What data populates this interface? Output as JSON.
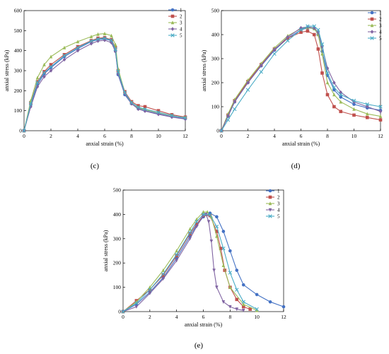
{
  "figure": {
    "panels": [
      "c",
      "d",
      "e"
    ]
  },
  "colors": {
    "s1": "#4472C4",
    "s2": "#C0504D",
    "s3": "#9BBB59",
    "s4": "#8064A2",
    "s5": "#4BACC6",
    "axis": "#000000"
  },
  "chart_data": [
    {
      "id": "c",
      "label": "(c)",
      "type": "line",
      "xlabel": "anxial strain (%)",
      "ylabel": "anxial stress (kPa)",
      "xlim": [
        0,
        12
      ],
      "ylim": [
        0,
        600
      ],
      "xticks": [
        0,
        2,
        4,
        6,
        8,
        10,
        12
      ],
      "yticks": [
        0,
        100,
        200,
        300,
        400,
        500,
        600
      ],
      "grid": false,
      "legend": "top-right",
      "series": [
        {
          "name": "1",
          "marker": "circle",
          "x": [
            0,
            0.5,
            1,
            1.5,
            2,
            3,
            4,
            5,
            5.5,
            6,
            6.5,
            6.8,
            7,
            7.5,
            8,
            8.5,
            9,
            10,
            11,
            12
          ],
          "y": [
            0,
            130,
            230,
            285,
            315,
            370,
            410,
            445,
            455,
            458,
            450,
            400,
            280,
            180,
            135,
            110,
            100,
            85,
            70,
            60
          ]
        },
        {
          "name": "2",
          "marker": "square",
          "x": [
            0,
            0.5,
            1,
            1.5,
            2,
            3,
            4,
            5,
            5.5,
            6,
            6.5,
            6.8,
            7,
            7.5,
            8,
            8.5,
            9,
            10,
            11,
            12
          ],
          "y": [
            0,
            140,
            245,
            295,
            330,
            380,
            420,
            450,
            462,
            465,
            455,
            415,
            300,
            195,
            145,
            125,
            120,
            100,
            80,
            68
          ]
        },
        {
          "name": "3",
          "marker": "triangle",
          "x": [
            0,
            0.5,
            1,
            1.5,
            2,
            3,
            4,
            5,
            5.5,
            6,
            6.5,
            6.8,
            7,
            7.5,
            8,
            8.5,
            9,
            10,
            11,
            12
          ],
          "y": [
            0,
            150,
            265,
            330,
            370,
            415,
            445,
            470,
            482,
            485,
            475,
            430,
            310,
            190,
            140,
            115,
            105,
            90,
            75,
            65
          ]
        },
        {
          "name": "4",
          "marker": "diamond",
          "x": [
            0,
            0.5,
            1,
            1.5,
            2,
            3,
            4,
            5,
            5.5,
            6,
            6.5,
            6.8,
            7,
            7.5,
            8,
            8.5,
            9,
            10,
            11,
            12
          ],
          "y": [
            0,
            120,
            220,
            270,
            300,
            355,
            400,
            435,
            448,
            452,
            440,
            395,
            285,
            185,
            135,
            108,
            98,
            82,
            68,
            58
          ]
        },
        {
          "name": "5",
          "marker": "x",
          "x": [
            0,
            0.5,
            1,
            1.5,
            2,
            3,
            4,
            5,
            5.5,
            6,
            6.5,
            6.8,
            7,
            7.5,
            8,
            8.5,
            9,
            10,
            11,
            12
          ],
          "y": [
            0,
            135,
            240,
            290,
            320,
            375,
            415,
            448,
            458,
            462,
            452,
            408,
            295,
            190,
            140,
            118,
            108,
            92,
            76,
            64
          ]
        }
      ]
    },
    {
      "id": "d",
      "label": "(d)",
      "type": "line",
      "xlabel": "anxial strain (%)",
      "ylabel": "anxial stress (kPa)",
      "xlim": [
        0,
        12
      ],
      "ylim": [
        0,
        500
      ],
      "xticks": [
        0,
        2,
        4,
        6,
        8,
        10,
        12
      ],
      "yticks": [
        0,
        100,
        200,
        300,
        400,
        500
      ],
      "grid": false,
      "legend": "top-right",
      "series": [
        {
          "name": "1",
          "marker": "circle",
          "x": [
            0,
            0.5,
            1,
            2,
            3,
            4,
            5,
            6,
            6.5,
            7,
            7.3,
            7.6,
            8,
            8.5,
            9,
            10,
            11,
            12
          ],
          "y": [
            0,
            60,
            120,
            200,
            270,
            335,
            385,
            420,
            428,
            425,
            400,
            330,
            230,
            170,
            140,
            110,
            95,
            85
          ]
        },
        {
          "name": "2",
          "marker": "square",
          "x": [
            0,
            0.5,
            1,
            2,
            3,
            4,
            5,
            6,
            6.5,
            7,
            7.3,
            7.6,
            8,
            8.5,
            9,
            10,
            11,
            12
          ],
          "y": [
            0,
            65,
            125,
            205,
            275,
            340,
            385,
            410,
            415,
            400,
            340,
            240,
            150,
            100,
            80,
            65,
            55,
            45
          ]
        },
        {
          "name": "3",
          "marker": "triangle",
          "x": [
            0,
            0.5,
            1,
            2,
            3,
            4,
            5,
            6,
            6.5,
            7,
            7.3,
            7.6,
            8,
            8.5,
            9,
            10,
            11,
            12
          ],
          "y": [
            0,
            70,
            130,
            210,
            280,
            345,
            395,
            425,
            430,
            425,
            400,
            320,
            200,
            150,
            120,
            90,
            70,
            60
          ]
        },
        {
          "name": "4",
          "marker": "diamond",
          "x": [
            0,
            0.5,
            1,
            2,
            3,
            4,
            5,
            6,
            6.5,
            7,
            7.3,
            7.6,
            8,
            8.5,
            9,
            10,
            11,
            12
          ],
          "y": [
            0,
            62,
            122,
            200,
            272,
            338,
            390,
            428,
            432,
            428,
            410,
            350,
            260,
            200,
            160,
            120,
            100,
            80
          ]
        },
        {
          "name": "5",
          "marker": "x",
          "x": [
            0,
            0.5,
            1,
            2,
            3,
            4,
            5,
            6,
            6.5,
            7,
            7.3,
            7.6,
            8,
            8.5,
            9,
            10,
            11,
            12
          ],
          "y": [
            0,
            45,
            90,
            170,
            245,
            320,
            375,
            420,
            435,
            435,
            420,
            360,
            240,
            180,
            150,
            125,
            110,
            100
          ]
        }
      ]
    },
    {
      "id": "e",
      "label": "(e)",
      "type": "line",
      "xlabel": "anxial strain (%)",
      "ylabel": "anxial stress (kPa)",
      "xlim": [
        0,
        12
      ],
      "ylim": [
        0,
        500
      ],
      "xticks": [
        0,
        2,
        4,
        6,
        8,
        10,
        12
      ],
      "yticks": [
        0,
        100,
        200,
        300,
        400,
        500
      ],
      "grid": false,
      "legend": "top-right",
      "series": [
        {
          "name": "1",
          "marker": "circle",
          "x": [
            0,
            1,
            2,
            3,
            4,
            5,
            5.5,
            6,
            6.5,
            7,
            7.5,
            8,
            8.5,
            9,
            10,
            11,
            12
          ],
          "y": [
            0,
            30,
            80,
            140,
            220,
            310,
            355,
            390,
            405,
            390,
            330,
            250,
            170,
            110,
            70,
            40,
            20
          ]
        },
        {
          "name": "2",
          "marker": "square",
          "x": [
            0,
            1,
            2,
            3,
            4,
            5,
            5.5,
            6,
            6.5,
            7,
            7.3,
            7.6,
            8,
            8.5,
            9,
            9.5
          ],
          "y": [
            0,
            45,
            90,
            150,
            230,
            320,
            360,
            395,
            395,
            330,
            260,
            170,
            100,
            50,
            20,
            10
          ]
        },
        {
          "name": "3",
          "marker": "triangle",
          "x": [
            0,
            1,
            2,
            3,
            4,
            5,
            5.5,
            6,
            6.3,
            6.6,
            7,
            7.5,
            8,
            9,
            10
          ],
          "y": [
            0,
            40,
            100,
            170,
            250,
            340,
            380,
            410,
            410,
            390,
            310,
            190,
            100,
            30,
            5
          ]
        },
        {
          "name": "4",
          "marker": "triangle-down",
          "x": [
            0,
            1,
            2,
            3,
            4,
            5,
            5.5,
            6,
            6.2,
            6.4,
            6.6,
            6.8,
            7,
            7.5,
            8,
            8.5,
            9
          ],
          "y": [
            0,
            20,
            75,
            135,
            210,
            300,
            350,
            395,
            400,
            370,
            290,
            170,
            100,
            40,
            20,
            10,
            5
          ]
        },
        {
          "name": "5",
          "marker": "x",
          "x": [
            0,
            1,
            2,
            3,
            4,
            5,
            5.5,
            6,
            6.5,
            7,
            7.5,
            8,
            8.5,
            9,
            10
          ],
          "y": [
            0,
            35,
            90,
            155,
            235,
            325,
            370,
            400,
            398,
            350,
            260,
            160,
            90,
            40,
            10
          ]
        }
      ]
    }
  ]
}
